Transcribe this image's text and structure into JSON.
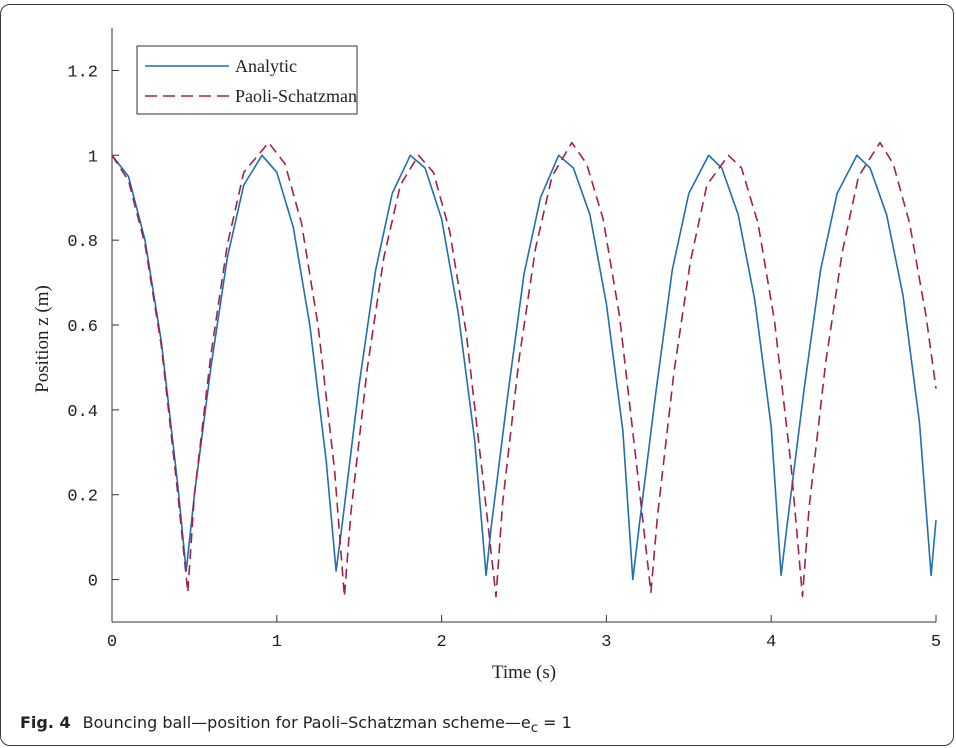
{
  "chart_data": {
    "type": "line",
    "title": "",
    "xlabel": "Time (s)",
    "ylabel": "Position z (m)",
    "xlim": [
      0,
      5
    ],
    "ylim": [
      -0.1,
      1.3
    ],
    "x_ticks": [
      "0",
      "1",
      "2",
      "3",
      "4",
      "5"
    ],
    "y_ticks": [
      "0",
      "0.2",
      "0.4",
      "0.6",
      "0.8",
      "1",
      "1.2"
    ],
    "grid": false,
    "legend_position": "top-left",
    "series": [
      {
        "name": "Analytic",
        "color": "#1f6fb2",
        "style": "solid",
        "x": [
          0,
          0.1,
          0.2,
          0.3,
          0.4,
          0.45,
          0.5,
          0.6,
          0.7,
          0.8,
          0.91,
          1.0,
          1.1,
          1.2,
          1.3,
          1.36,
          1.4,
          1.5,
          1.6,
          1.7,
          1.81,
          1.9,
          2.0,
          2.1,
          2.2,
          2.27,
          2.3,
          2.4,
          2.5,
          2.6,
          2.71,
          2.8,
          2.9,
          3.0,
          3.1,
          3.16,
          3.2,
          3.3,
          3.4,
          3.5,
          3.62,
          3.7,
          3.8,
          3.9,
          4.0,
          4.06,
          4.1,
          4.2,
          4.3,
          4.4,
          4.52,
          4.6,
          4.7,
          4.8,
          4.9,
          4.97,
          5.0
        ],
        "y": [
          1.0,
          0.95,
          0.8,
          0.56,
          0.22,
          0.02,
          0.2,
          0.5,
          0.76,
          0.93,
          1.0,
          0.96,
          0.83,
          0.6,
          0.28,
          0.02,
          0.14,
          0.46,
          0.73,
          0.91,
          1.0,
          0.97,
          0.85,
          0.63,
          0.33,
          0.01,
          0.12,
          0.43,
          0.72,
          0.9,
          1.0,
          0.97,
          0.86,
          0.65,
          0.35,
          0.0,
          0.13,
          0.44,
          0.73,
          0.91,
          1.0,
          0.97,
          0.86,
          0.66,
          0.36,
          0.01,
          0.14,
          0.45,
          0.73,
          0.91,
          1.0,
          0.97,
          0.86,
          0.67,
          0.37,
          0.01,
          0.14
        ]
      },
      {
        "name": "Paoli-Schatzman",
        "color": "#a3204a",
        "style": "dashed",
        "x": [
          0,
          0.1,
          0.2,
          0.3,
          0.4,
          0.46,
          0.5,
          0.6,
          0.7,
          0.8,
          0.95,
          1.05,
          1.15,
          1.25,
          1.35,
          1.41,
          1.45,
          1.55,
          1.65,
          1.75,
          1.86,
          1.95,
          2.05,
          2.15,
          2.25,
          2.33,
          2.37,
          2.47,
          2.57,
          2.67,
          2.79,
          2.88,
          2.98,
          3.08,
          3.18,
          3.27,
          3.31,
          3.41,
          3.51,
          3.61,
          3.74,
          3.82,
          3.92,
          4.02,
          4.12,
          4.19,
          4.23,
          4.33,
          4.43,
          4.53,
          4.66,
          4.74,
          4.84,
          4.94,
          5.0
        ],
        "y": [
          1.0,
          0.94,
          0.79,
          0.55,
          0.2,
          -0.03,
          0.2,
          0.53,
          0.79,
          0.96,
          1.03,
          0.98,
          0.84,
          0.6,
          0.26,
          -0.04,
          0.16,
          0.5,
          0.76,
          0.93,
          1.0,
          0.96,
          0.82,
          0.58,
          0.24,
          -0.04,
          0.18,
          0.52,
          0.78,
          0.95,
          1.03,
          0.98,
          0.85,
          0.62,
          0.28,
          -0.03,
          0.15,
          0.49,
          0.75,
          0.93,
          1.0,
          0.97,
          0.84,
          0.61,
          0.27,
          -0.04,
          0.17,
          0.51,
          0.77,
          0.95,
          1.03,
          0.98,
          0.84,
          0.62,
          0.45
        ]
      }
    ]
  },
  "caption": {
    "label": "Fig. 4",
    "text": "Bouncing ball—position for Paoli–Schatzman scheme—e",
    "subscript": "c",
    "tail": " = 1"
  }
}
